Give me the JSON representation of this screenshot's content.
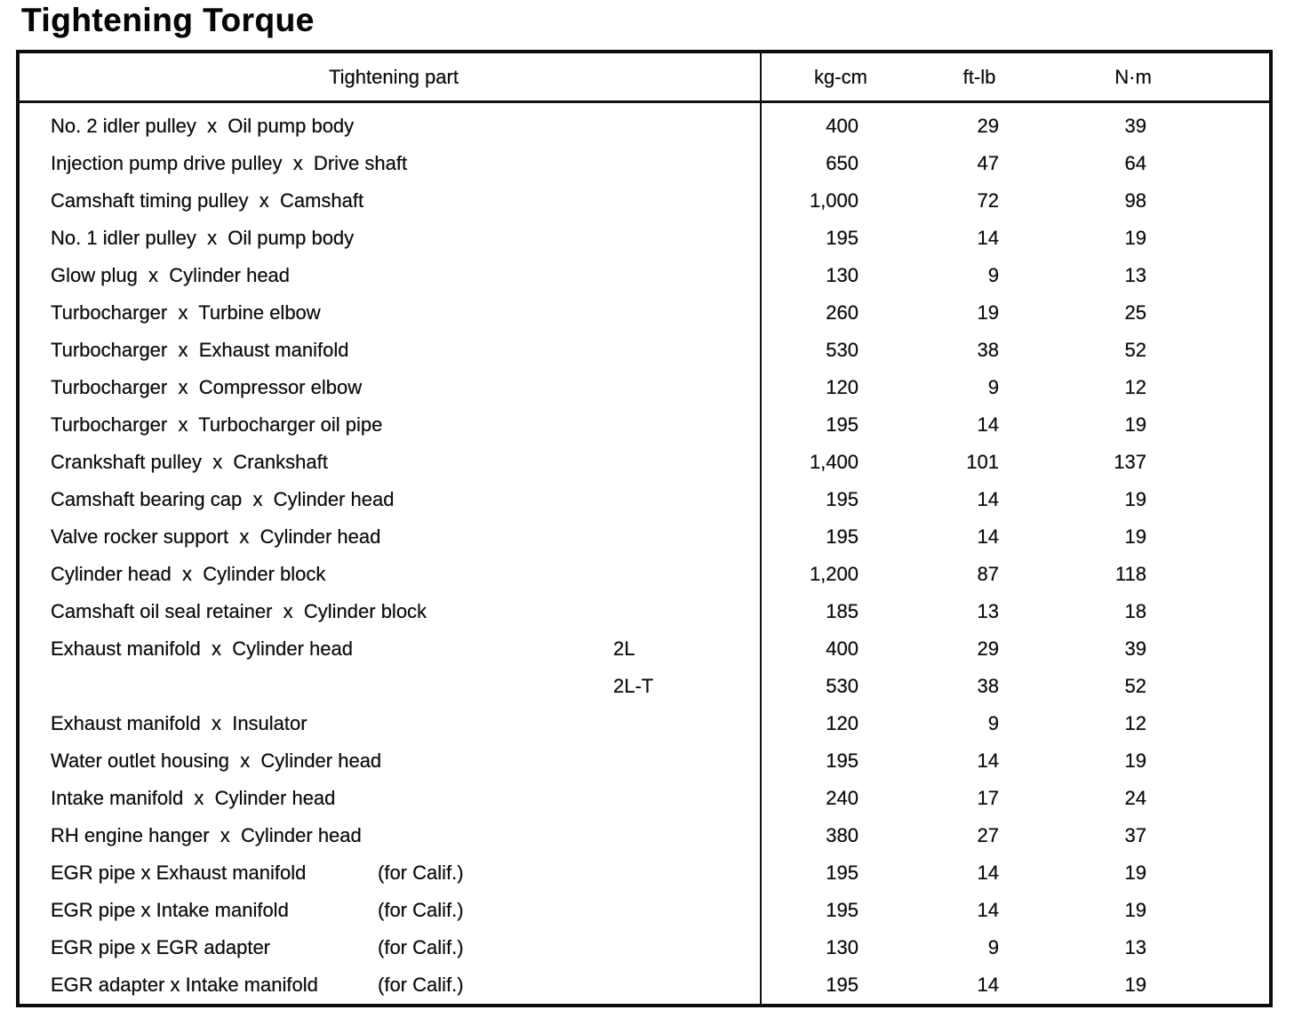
{
  "page_title": "Tightening Torque",
  "table": {
    "part_header": "Tightening part",
    "unit_headers": [
      "kg-cm",
      "ft-lb",
      "N·m"
    ],
    "rows": [
      {
        "part": "No. 2 idler pulley  x  Oil pump body",
        "variant": "",
        "note": "",
        "kg_cm": "400",
        "ft_lb": "29",
        "n_m": "39"
      },
      {
        "part": "Injection pump drive pulley  x  Drive shaft",
        "variant": "",
        "note": "",
        "kg_cm": "650",
        "ft_lb": "47",
        "n_m": "64"
      },
      {
        "part": "Camshaft timing pulley  x  Camshaft",
        "variant": "",
        "note": "",
        "kg_cm": "1,000",
        "ft_lb": "72",
        "n_m": "98"
      },
      {
        "part": "No. 1 idler pulley  x  Oil pump body",
        "variant": "",
        "note": "",
        "kg_cm": "195",
        "ft_lb": "14",
        "n_m": "19"
      },
      {
        "part": "Glow plug  x  Cylinder head",
        "variant": "",
        "note": "",
        "kg_cm": "130",
        "ft_lb": "9",
        "n_m": "13"
      },
      {
        "part": "Turbocharger  x  Turbine elbow",
        "variant": "",
        "note": "",
        "kg_cm": "260",
        "ft_lb": "19",
        "n_m": "25"
      },
      {
        "part": "Turbocharger  x  Exhaust manifold",
        "variant": "",
        "note": "",
        "kg_cm": "530",
        "ft_lb": "38",
        "n_m": "52"
      },
      {
        "part": "Turbocharger  x  Compressor elbow",
        "variant": "",
        "note": "",
        "kg_cm": "120",
        "ft_lb": "9",
        "n_m": "12"
      },
      {
        "part": "Turbocharger  x  Turbocharger oil pipe",
        "variant": "",
        "note": "",
        "kg_cm": "195",
        "ft_lb": "14",
        "n_m": "19"
      },
      {
        "part": "Crankshaft pulley  x  Crankshaft",
        "variant": "",
        "note": "",
        "kg_cm": "1,400",
        "ft_lb": "101",
        "n_m": "137"
      },
      {
        "part": "Camshaft bearing cap  x  Cylinder head",
        "variant": "",
        "note": "",
        "kg_cm": "195",
        "ft_lb": "14",
        "n_m": "19"
      },
      {
        "part": "Valve rocker support  x  Cylinder head",
        "variant": "",
        "note": "",
        "kg_cm": "195",
        "ft_lb": "14",
        "n_m": "19"
      },
      {
        "part": "Cylinder head  x  Cylinder block",
        "variant": "",
        "note": "",
        "kg_cm": "1,200",
        "ft_lb": "87",
        "n_m": "118"
      },
      {
        "part": "Camshaft oil seal retainer  x  Cylinder block",
        "variant": "",
        "note": "",
        "kg_cm": "185",
        "ft_lb": "13",
        "n_m": "18"
      },
      {
        "part": "Exhaust manifold  x  Cylinder head",
        "variant": "2L",
        "note": "",
        "kg_cm": "400",
        "ft_lb": "29",
        "n_m": "39"
      },
      {
        "part": "",
        "variant": "2L-T",
        "note": "",
        "kg_cm": "530",
        "ft_lb": "38",
        "n_m": "52"
      },
      {
        "part": "Exhaust manifold  x  Insulator",
        "variant": "",
        "note": "",
        "kg_cm": "120",
        "ft_lb": "9",
        "n_m": "12"
      },
      {
        "part": "Water outlet housing  x  Cylinder head",
        "variant": "",
        "note": "",
        "kg_cm": "195",
        "ft_lb": "14",
        "n_m": "19"
      },
      {
        "part": "Intake manifold  x  Cylinder head",
        "variant": "",
        "note": "",
        "kg_cm": "240",
        "ft_lb": "17",
        "n_m": "24"
      },
      {
        "part": "RH engine hanger  x  Cylinder head",
        "variant": "",
        "note": "",
        "kg_cm": "380",
        "ft_lb": "27",
        "n_m": "37"
      },
      {
        "part": "EGR pipe x Exhaust manifold",
        "variant": "",
        "note": "(for Calif.)",
        "kg_cm": "195",
        "ft_lb": "14",
        "n_m": "19"
      },
      {
        "part": "EGR pipe x Intake manifold",
        "variant": "",
        "note": "(for Calif.)",
        "kg_cm": "195",
        "ft_lb": "14",
        "n_m": "19"
      },
      {
        "part": "EGR pipe x EGR adapter",
        "variant": "",
        "note": "(for Calif.)",
        "kg_cm": "130",
        "ft_lb": "9",
        "n_m": "13"
      },
      {
        "part": "EGR adapter x Intake manifold",
        "variant": "",
        "note": "(for Calif.)",
        "kg_cm": "195",
        "ft_lb": "14",
        "n_m": "19"
      }
    ]
  }
}
